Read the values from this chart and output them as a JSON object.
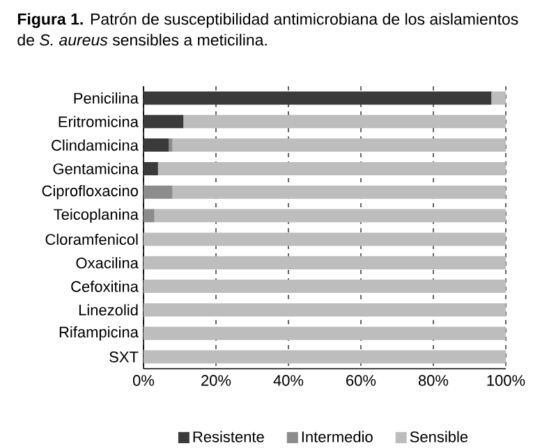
{
  "chart_data": {
    "type": "bar",
    "orientation": "horizontal",
    "stacked": true,
    "title": "**Figura 1.** Patrón de susceptibilidad antimicrobiana de los aislamientos de *S. aureus* sensibles a meticilina.",
    "categories": [
      "Penicilina",
      "Eritromicina",
      "Clindamicina",
      "Gentamicina",
      "Ciprofloxacino",
      "Teicoplanina",
      "Cloramfenicol",
      "Oxacilina",
      "Cefoxitina",
      "Linezolid",
      "Rifampicina",
      "SXT"
    ],
    "series": [
      {
        "name": "Resistente",
        "color": "#3a3a3a",
        "values": [
          96,
          11,
          7,
          4,
          0,
          0,
          0,
          0,
          0,
          0,
          0,
          0
        ]
      },
      {
        "name": "Intermedio",
        "color": "#8c8c8c",
        "values": [
          0,
          0,
          1,
          0,
          8,
          3,
          0,
          0,
          0,
          0,
          0,
          0
        ]
      },
      {
        "name": "Sensible",
        "color": "#bdbdbd",
        "values": [
          4,
          89,
          92,
          96,
          92,
          97,
          100,
          100,
          100,
          100,
          100,
          100
        ]
      }
    ],
    "xlim": [
      0,
      100
    ],
    "xticks": [
      {
        "value": 0,
        "label": "0%"
      },
      {
        "value": 20,
        "label": "20%"
      },
      {
        "value": 40,
        "label": "40%"
      },
      {
        "value": 60,
        "label": "60%"
      },
      {
        "value": 80,
        "label": "80%"
      },
      {
        "value": 100,
        "label": "100%"
      }
    ],
    "grid": "x",
    "legend": "bottom"
  }
}
